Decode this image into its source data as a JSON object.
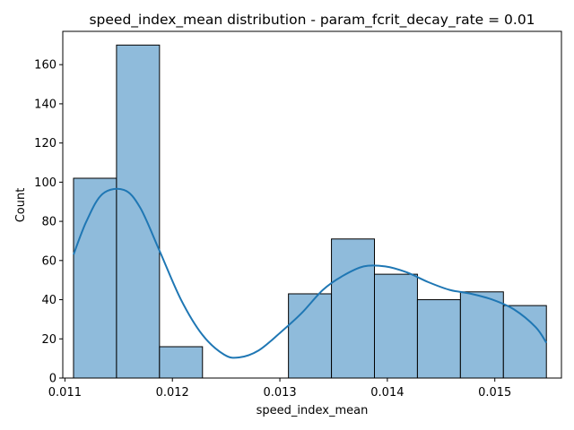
{
  "chart_data": {
    "type": "bar",
    "subtype": "histogram-with-kde",
    "title": "speed_index_mean distribution - param_fcrit_decay_rate = 0.01",
    "xlabel": "speed_index_mean",
    "ylabel": "Count",
    "xlim": [
      0.01098,
      0.01562
    ],
    "ylim": [
      0,
      177
    ],
    "xticks": [
      0.011,
      0.012,
      0.013,
      0.014,
      0.015
    ],
    "xtick_labels": [
      "0.011",
      "0.012",
      "0.013",
      "0.014",
      "0.015"
    ],
    "yticks": [
      0,
      20,
      40,
      60,
      80,
      100,
      120,
      140,
      160
    ],
    "ytick_labels": [
      "0",
      "20",
      "40",
      "60",
      "80",
      "100",
      "120",
      "140",
      "160"
    ],
    "grid": false,
    "bin_edges": [
      0.01108,
      0.01148,
      0.01188,
      0.01228,
      0.01268,
      0.01308,
      0.01348,
      0.01388,
      0.01428,
      0.01468,
      0.01508,
      0.01548
    ],
    "values": [
      102,
      170,
      16,
      0,
      0,
      43,
      71,
      53,
      40,
      44,
      37
    ],
    "kde": {
      "x": [
        0.01108,
        0.0112,
        0.01135,
        0.01155,
        0.0117,
        0.01188,
        0.01208,
        0.01228,
        0.01248,
        0.01262,
        0.0128,
        0.013,
        0.0132,
        0.0134,
        0.01358,
        0.01378,
        0.01398,
        0.01418,
        0.01438,
        0.01458,
        0.01478,
        0.01498,
        0.01518,
        0.01538,
        0.01548
      ],
      "y": [
        63,
        80,
        94,
        96,
        87,
        65,
        40,
        22,
        12,
        10.5,
        14,
        23,
        33,
        45,
        52,
        57,
        57,
        54,
        49,
        45,
        43,
        40,
        35,
        26,
        18
      ]
    },
    "colors": {
      "bar_fill": "#8fbbdb",
      "bar_edge": "#000000",
      "kde_line": "#1f77b4"
    }
  }
}
